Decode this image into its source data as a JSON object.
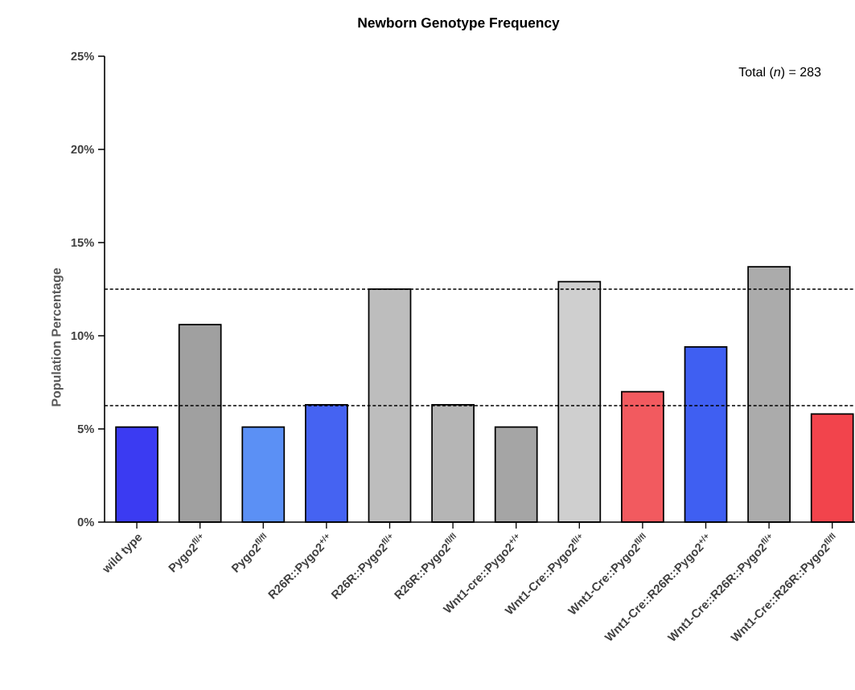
{
  "chart_data": {
    "type": "bar",
    "title": "Newborn Genotype Frequency",
    "ylabel": "Population Percentage",
    "categories": [
      "wild type",
      "Pygo2$^{fl/+}$",
      "Pygo2$^{fl/fl}$",
      "R26R::Pygo2$^{+/+}$",
      "R26R::Pygo2$^{fl/+}$",
      "R26R::Pygo2$^{fl/fl}$",
      "Wnt1-cre::Pygo2$^{+/+}$",
      "Wnt1-Cre::Pygo2$^{fl/+}$",
      "Wnt1-Cre::Pygo2$^{fl/fl}$",
      "Wnt1-Cre::R26R::Pygo2$^{+/+}$",
      "Wnt1-Cre::R26R::Pygo2$^{fl/+}$",
      "Wnt1-Cre::R26R::Pygo2$^{fl/fl}$"
    ],
    "values": [
      5.1,
      10.6,
      5.1,
      6.3,
      12.5,
      6.3,
      5.1,
      12.9,
      7.0,
      9.4,
      13.7,
      5.8
    ],
    "colors": [
      "#3b3bf2",
      "#a0a0a0",
      "#5b90f5",
      "#4563f2",
      "#bdbdbd",
      "#b5b5b5",
      "#a5a5a5",
      "#cfcfcf",
      "#f25a5f",
      "#3f5ff2",
      "#ababab",
      "#f2444c"
    ],
    "ylim": [
      0,
      25
    ],
    "yticks": [
      {
        "value": 0,
        "label": "0%"
      },
      {
        "value": 5,
        "label": "5%"
      },
      {
        "value": 10,
        "label": "10%"
      },
      {
        "value": 15,
        "label": "15%"
      },
      {
        "value": 20,
        "label": "20%"
      },
      {
        "value": 25,
        "label": "25%"
      }
    ],
    "ref_lines": [
      {
        "axis": "y",
        "value": 12.5,
        "line_style": "dashed"
      },
      {
        "axis": "y",
        "value": 6.25,
        "line_style": "dashed"
      }
    ],
    "annotations": [
      "Total (*n*) = 283"
    ]
  }
}
